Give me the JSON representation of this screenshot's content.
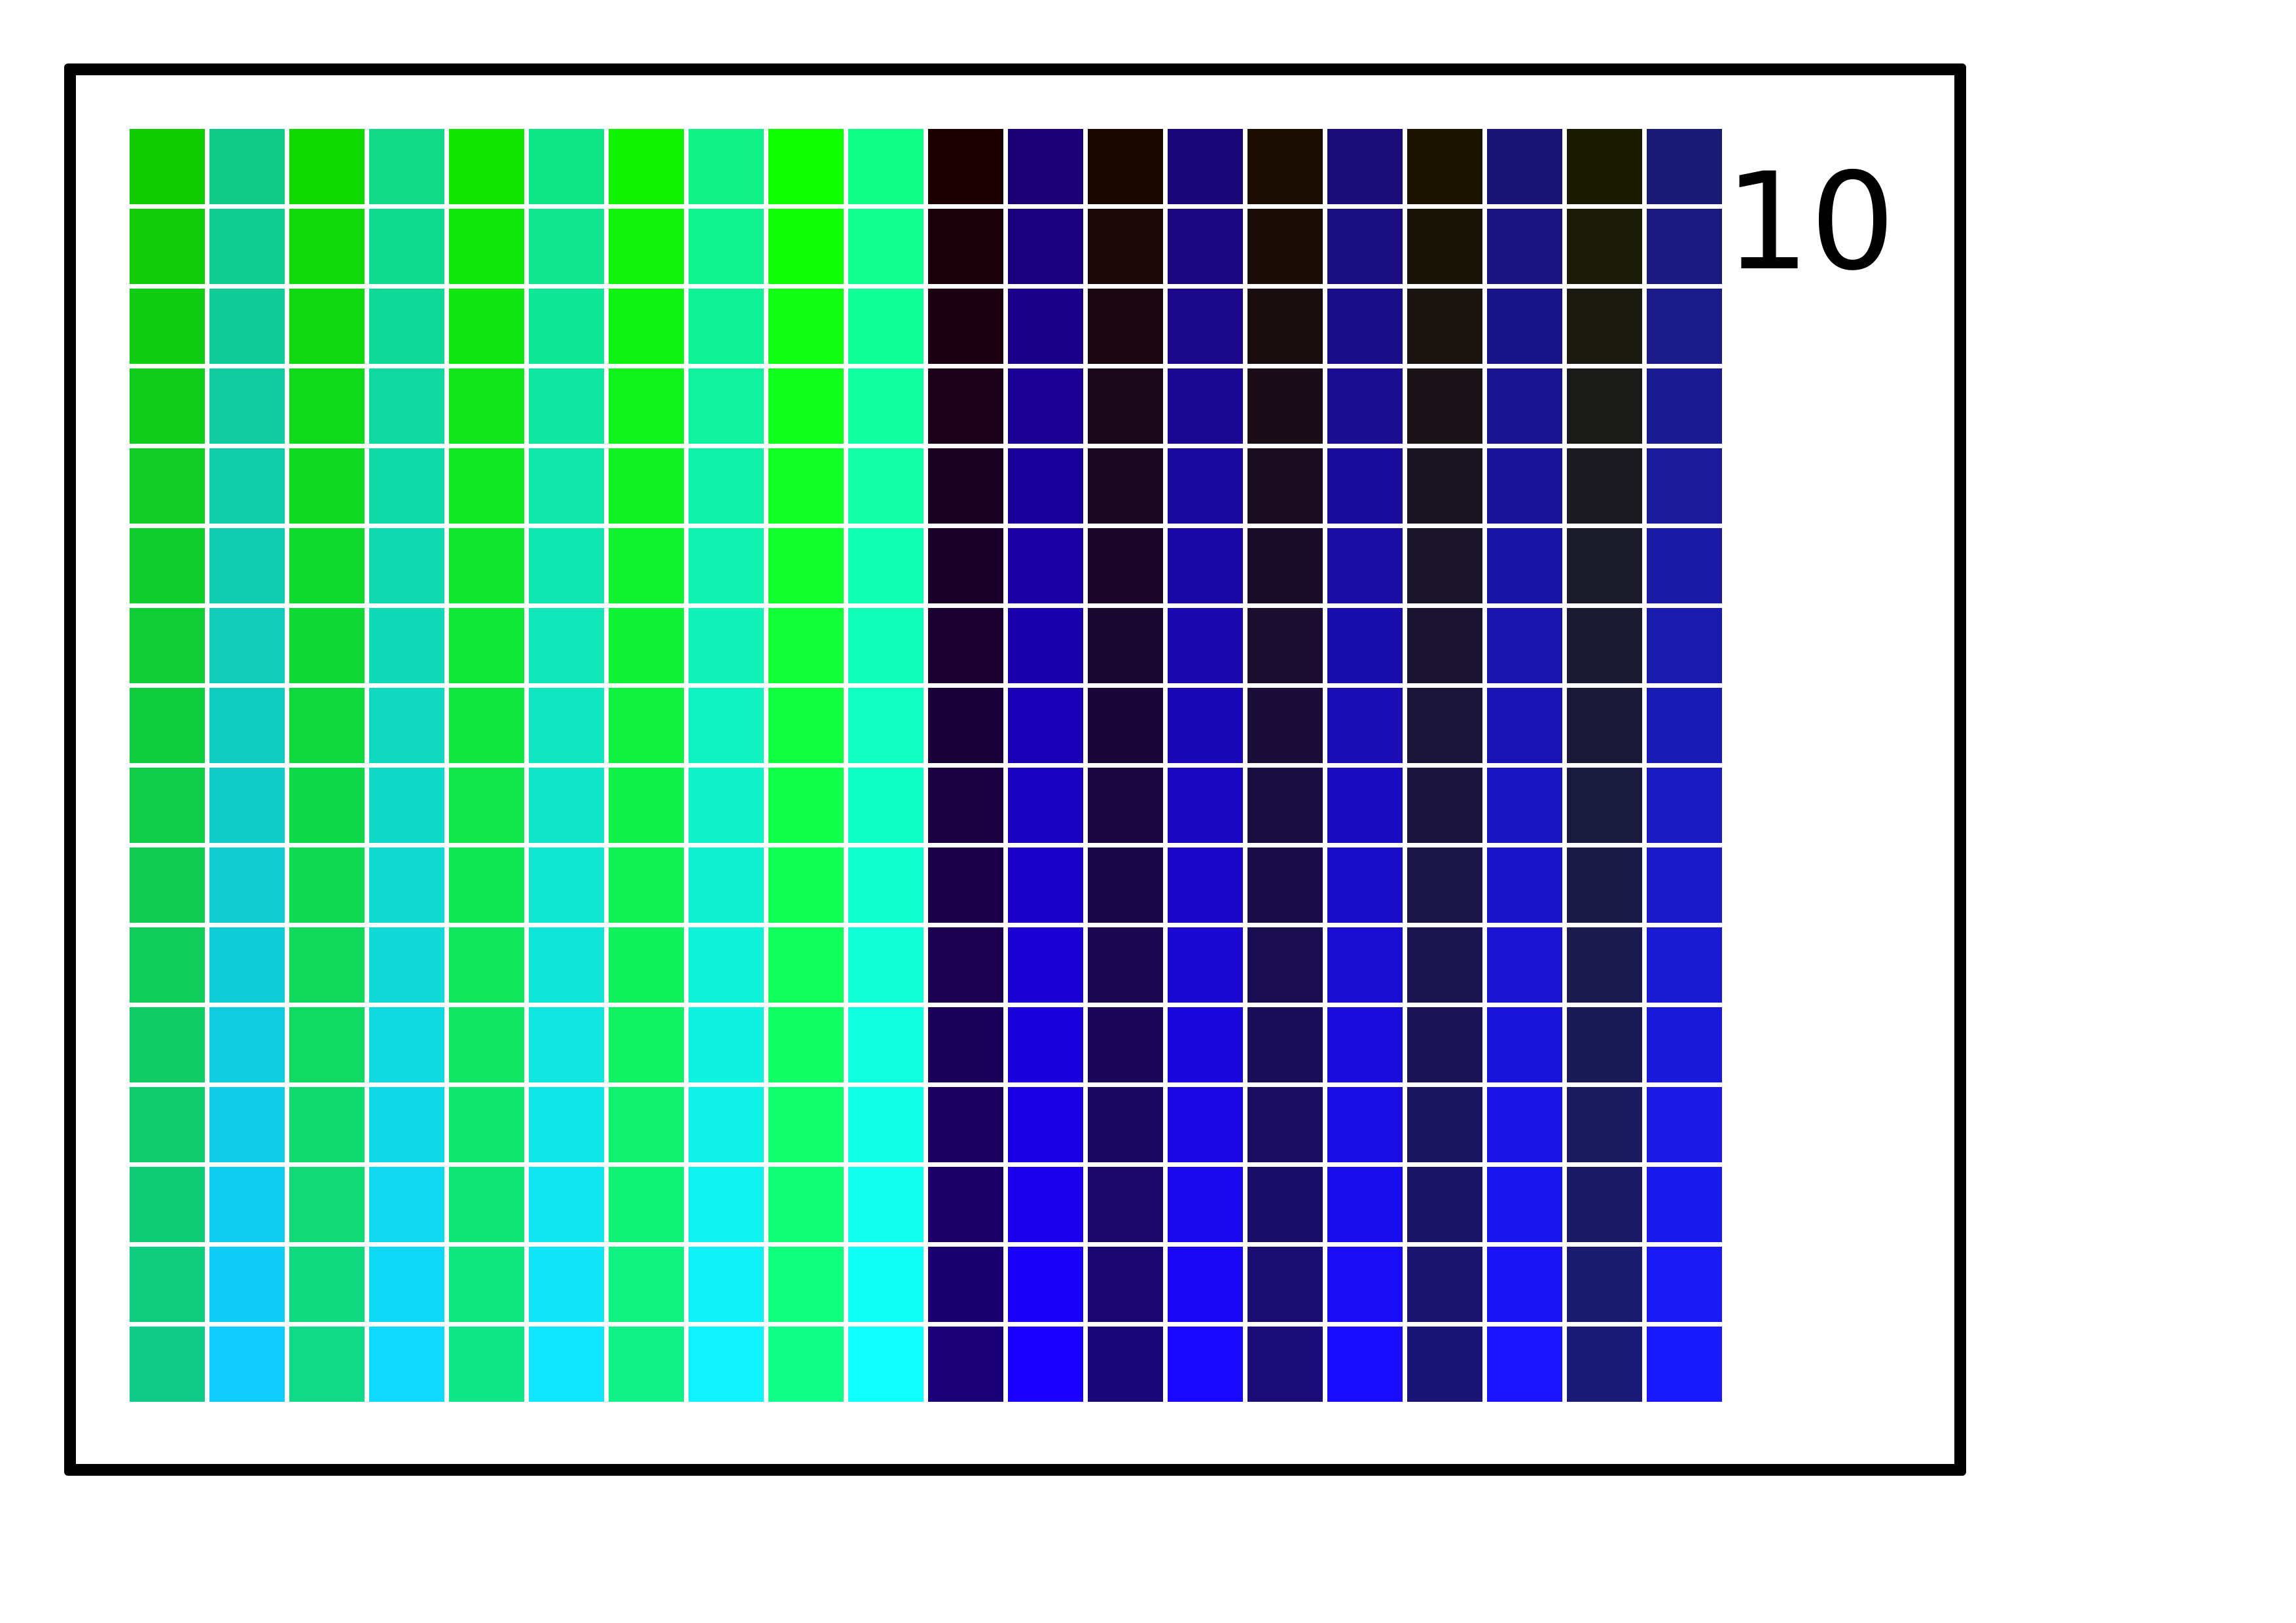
{
  "plate": {
    "number": "10"
  },
  "grid": {
    "rows": 16,
    "columns": 20,
    "corner_colors": {
      "a": {
        "top_left": "#10cc00",
        "top_right": "#10ff00",
        "bottom_left": "#10cc88",
        "bottom_right": "#10ff88"
      },
      "b": {
        "top_left": "#10cc88",
        "top_right": "#10ff88",
        "bottom_left": "#10ccff",
        "bottom_right": "#10ffff"
      },
      "c": {
        "top_left": "#1a0000",
        "top_right": "#1a1a00",
        "bottom_left": "#1a0077",
        "bottom_right": "#1a1a77"
      },
      "d": {
        "top_left": "#1a0077",
        "top_right": "#1a1a77",
        "bottom_left": "#1a00ff",
        "bottom_right": "#1a1aff"
      }
    }
  },
  "colors": {
    "background": "#ffffff",
    "frame": "#000000",
    "text": "#000000",
    "grid_gap": "#ffffff"
  }
}
